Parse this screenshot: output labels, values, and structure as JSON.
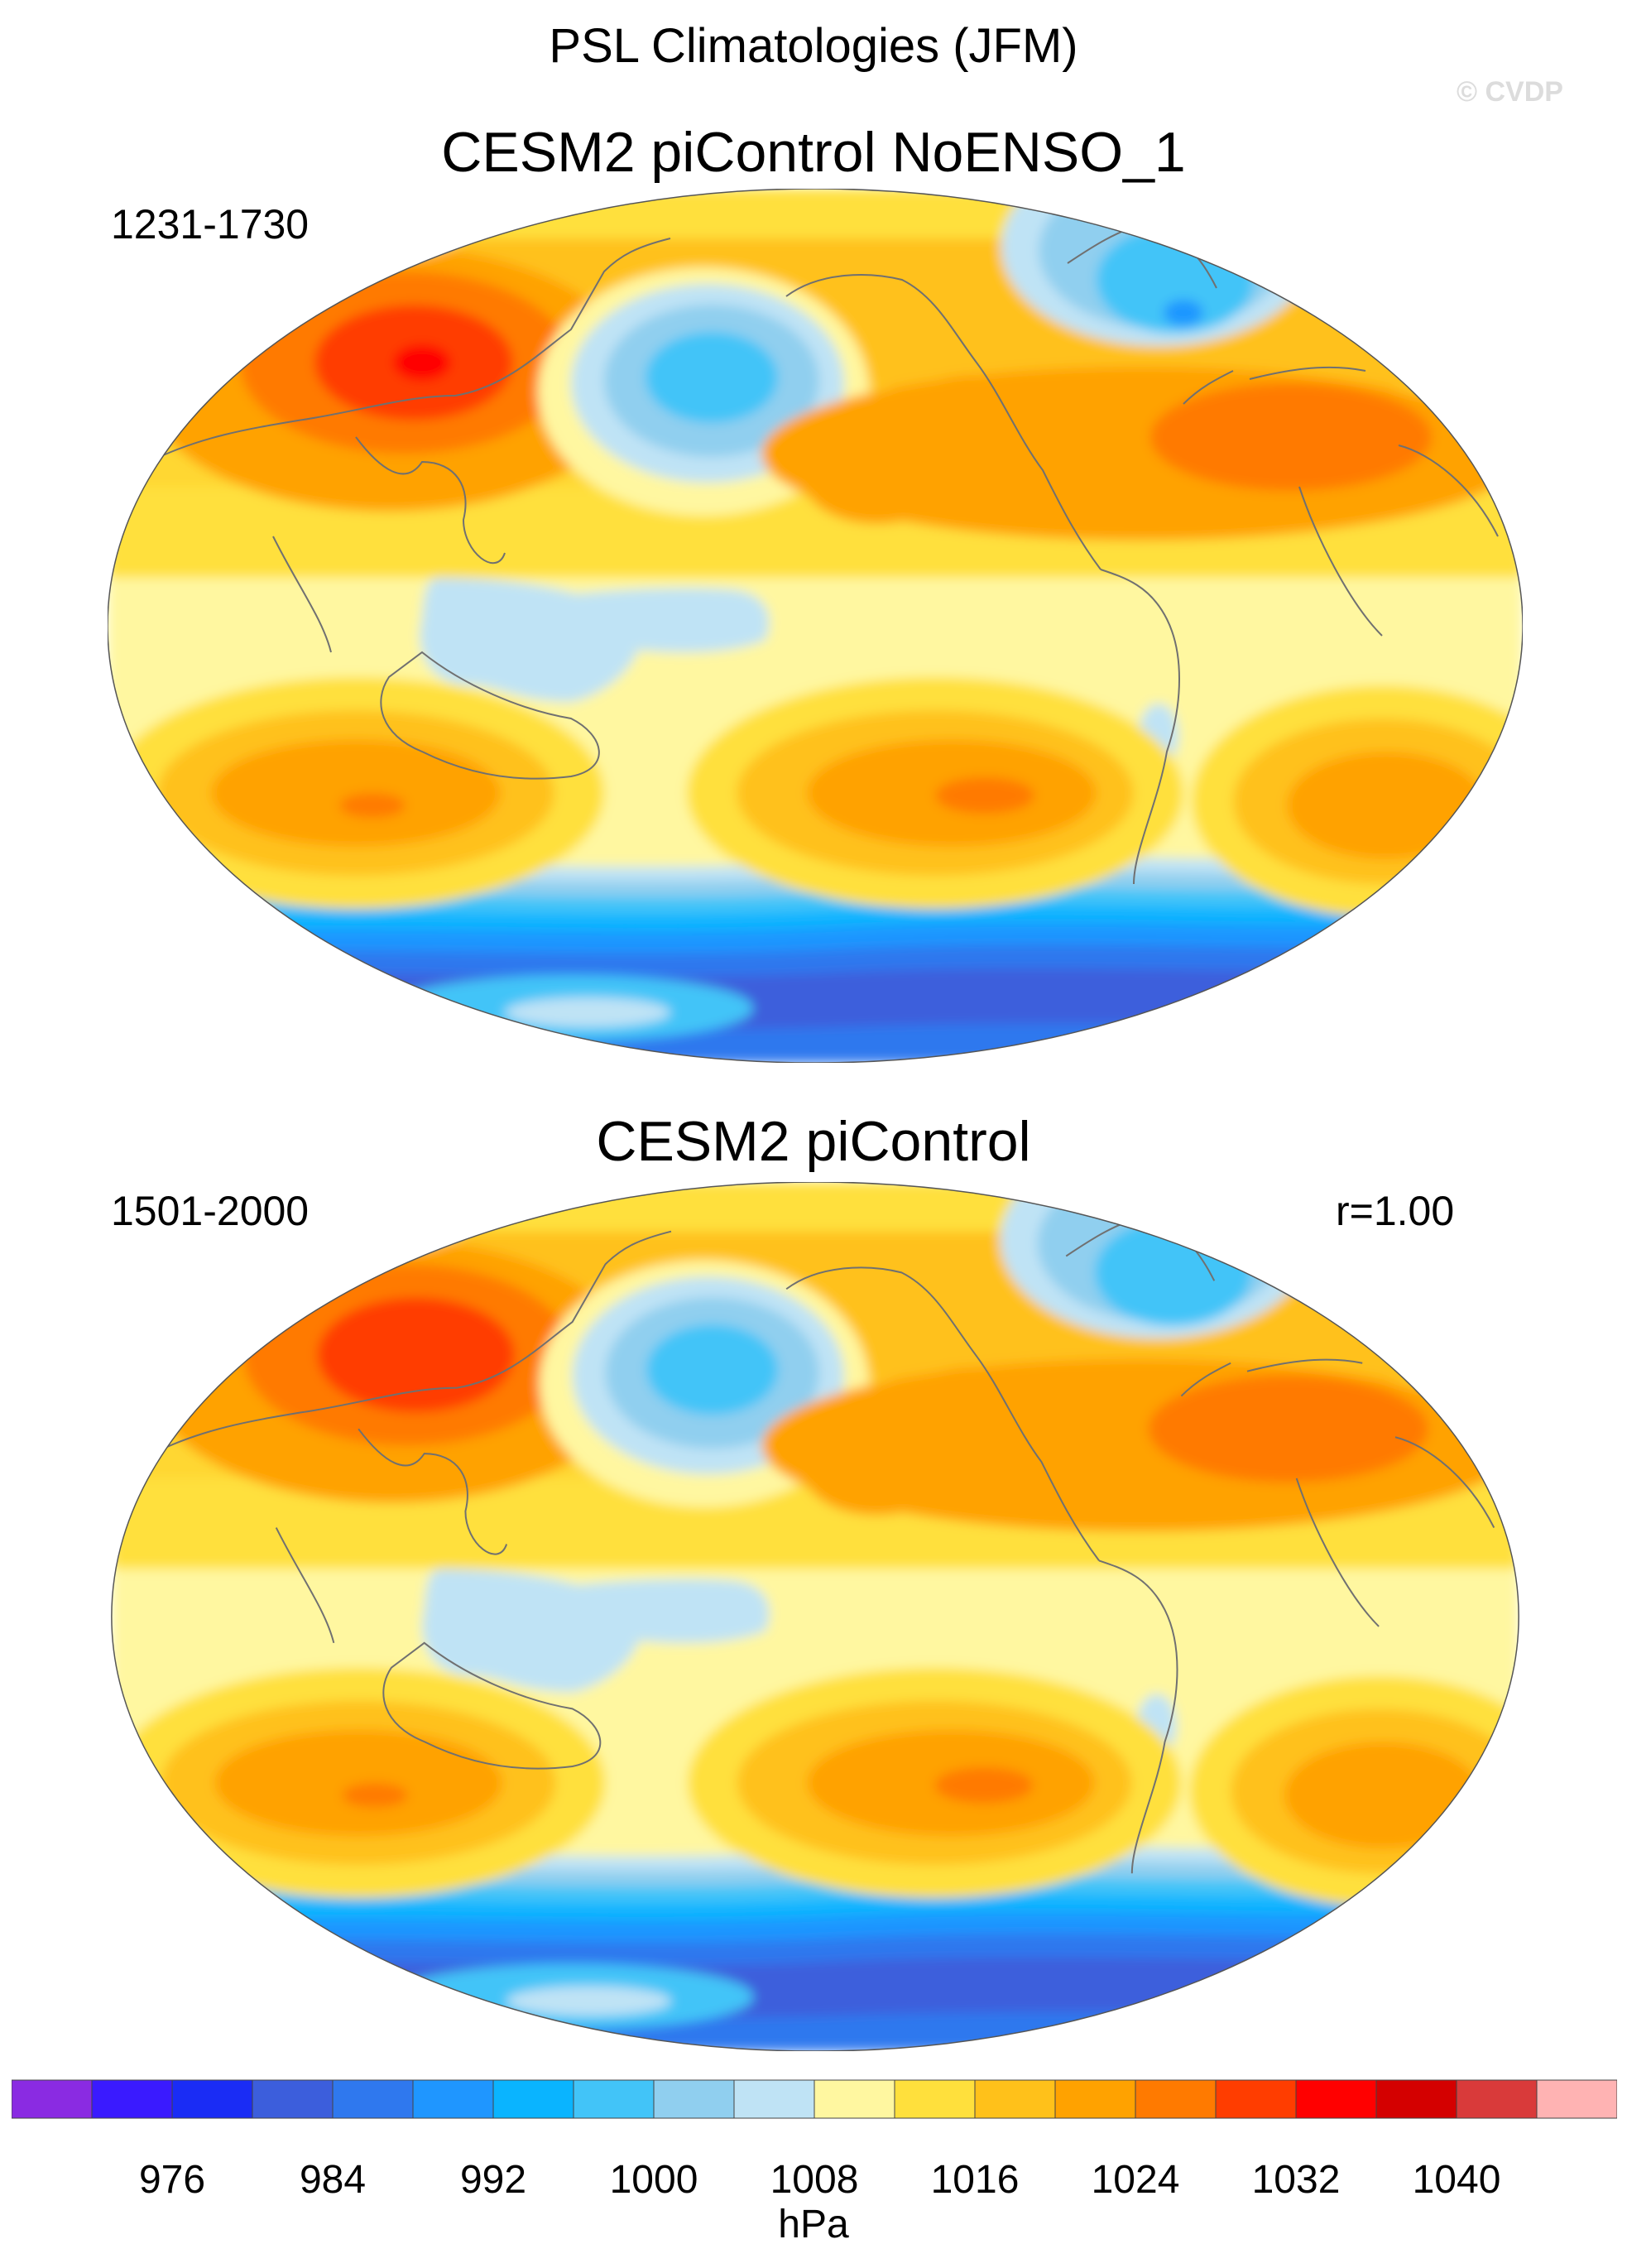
{
  "title": "PSL Climatologies (JFM)",
  "watermark": "© CVDP",
  "panels": [
    {
      "title": "CESM2 piControl NoENSO_1",
      "period": "1231-1730",
      "corr": ""
    },
    {
      "title": "CESM2 piControl",
      "period": "1501-2000",
      "corr": "r=1.00"
    }
  ],
  "colorbar": {
    "units": "hPa",
    "colors": [
      "#8a2be2",
      "#3a1aff",
      "#1a2cf5",
      "#3c5edc",
      "#2f78ee",
      "#1f96ff",
      "#0ab4ff",
      "#42c4f8",
      "#90cfef",
      "#bfe3f5",
      "#fff7a0",
      "#ffe03c",
      "#ffc11a",
      "#ffa200",
      "#ff7a00",
      "#ff3d00",
      "#ff0000",
      "#d40000",
      "#d93a3a",
      "#ffb3b3"
    ],
    "ticks": [
      "976",
      "984",
      "992",
      "1000",
      "1008",
      "1016",
      "1024",
      "1032",
      "1040"
    ]
  },
  "palette": {
    "lowest": "#1a2cf5",
    "deep": "#3c5edc",
    "blue": "#2f78ee",
    "mid_blue": "#1f96ff",
    "sky": "#0ab4ff",
    "light_sky": "#42c4f8",
    "pale_blue": "#90cfef",
    "faint_blue": "#bfe3f5",
    "pale_yellow": "#fff7a0",
    "yellow": "#ffe03c",
    "gold": "#ffc11a",
    "orange": "#ffa200",
    "dark_orange": "#ff7a00",
    "red_orange": "#ff3d00",
    "red": "#ff0000"
  }
}
